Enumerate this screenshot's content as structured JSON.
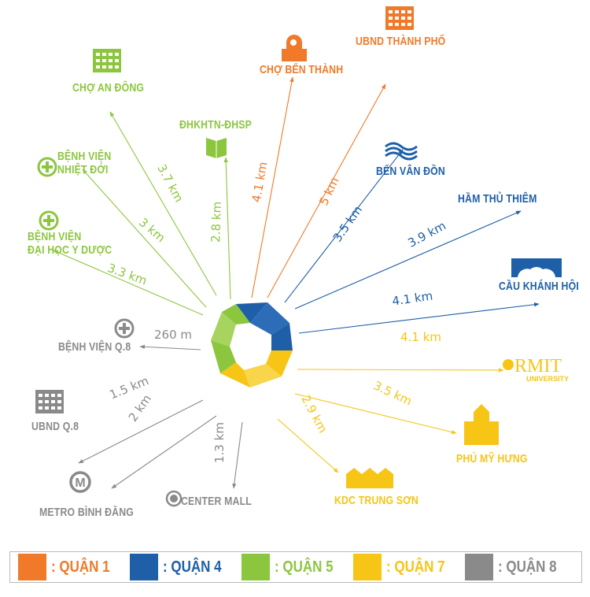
{
  "colors": {
    "quan1": "#f07a2a",
    "quan4": "#1e5fa8",
    "quan5": "#8cc63f",
    "quan7": "#f6c515",
    "quan8": "#8a8a8a"
  },
  "places": {
    "cho_an_dong": {
      "name": "CHỢ AN ĐÔNG",
      "distance": "3.7 km",
      "district": "quan5",
      "icon": "building-icon"
    },
    "bv_nhiet_doi": {
      "name_line1": "BỆNH VIỆN",
      "name_line2": "NHIỆT ĐỚI",
      "distance": "3 km",
      "district": "quan5",
      "icon": "hospital-cross-icon"
    },
    "bv_dh_y_duoc": {
      "name_line1": "BỆNH VIỆN",
      "name_line2": "ĐẠI HỌC Y DƯỢC",
      "distance": "3.3 km",
      "district": "quan5",
      "icon": "hospital-cross-icon"
    },
    "dhkhtn": {
      "name": "ĐHKHTN-ĐHSP",
      "distance": "2.8 km",
      "district": "quan5",
      "icon": "book-icon"
    },
    "cho_ben_thanh": {
      "name": "CHỢ BẾN THÀNH",
      "distance": "4.1 km",
      "district": "quan1",
      "icon": "market-icon"
    },
    "ubnd_tp": {
      "name": "UBND THÀNH PHỐ",
      "distance": "5 km",
      "district": "quan1",
      "icon": "office-building-icon"
    },
    "ben_van_don": {
      "name": "BẾN VÂN ĐỒN",
      "distance": "3.5 km",
      "district": "quan4",
      "icon": "waves-icon"
    },
    "ham_thu_thiem": {
      "name": "HẦM THỦ THIÊM",
      "distance": "3.9 km",
      "district": "quan4"
    },
    "cau_khanh_hoi": {
      "name": "CẦU KHÁNH HỘI",
      "distance": "4.1 km",
      "district": "quan4",
      "icon": "bridge-icon"
    },
    "rmit": {
      "name": "RMIT",
      "sub": "UNIVERSITY",
      "distance": "4.1 km",
      "district": "quan7",
      "icon": "rmit-logo-icon"
    },
    "phu_my_hung": {
      "name": "PHÚ MỸ HƯNG",
      "distance": "3.5 km",
      "district": "quan7",
      "icon": "school-building-icon"
    },
    "kdc_trung_son": {
      "name": "KDC TRUNG SƠN",
      "distance": "2.9 km",
      "district": "quan7",
      "icon": "houses-icon"
    },
    "center_mall": {
      "name": "CENTER MALL",
      "distance": "1.3 km",
      "district": "quan8",
      "icon": "target-circle-icon"
    },
    "metro": {
      "name": "METRO BÌNH ĐĂNG",
      "distance": "2 km",
      "district": "quan8",
      "icon": "metro-icon"
    },
    "ubnd_q8": {
      "name": "UBND Q.8",
      "distance": "1.5 km",
      "district": "quan8",
      "icon": "office-building-icon"
    },
    "bv_q8": {
      "name": "BỆNH VIỆN Q.8",
      "distance": "260 m",
      "district": "quan8",
      "icon": "hospital-cross-icon"
    }
  },
  "legend": [
    {
      "label": ": QUẬN 1",
      "color": "#f07a2a"
    },
    {
      "label": ": QUẬN 4",
      "color": "#1e5fa8"
    },
    {
      "label": ": QUẬN 5",
      "color": "#8cc63f"
    },
    {
      "label": ": QUẬN 7",
      "color": "#f6c515"
    },
    {
      "label": ": QUẬN 8",
      "color": "#8a8a8a"
    }
  ]
}
